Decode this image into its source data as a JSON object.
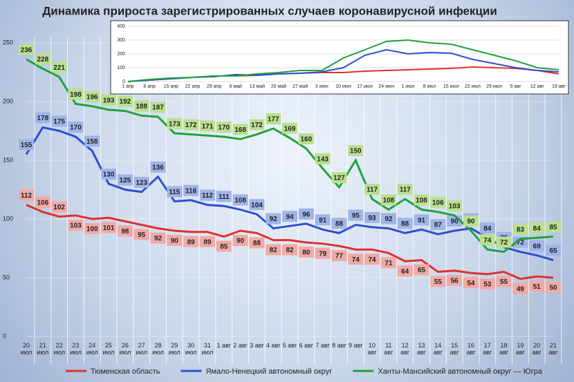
{
  "chart_data": [
    {
      "type": "line",
      "title": "Динамика прироста зарегистрированных случаев коронавирусной инфекции",
      "categories": [
        "20 июл",
        "21 июл",
        "22 июл",
        "23 июл",
        "24 июл",
        "25 июл",
        "26 июл",
        "27 июл",
        "28 июл",
        "29 июл",
        "30 июл",
        "31 июл",
        "1 авг",
        "2 авг",
        "3 авг",
        "4 авг",
        "5 авг",
        "6 авг",
        "7 авг",
        "8 авг",
        "9 авг",
        "10 авг",
        "11 авг",
        "12 авг",
        "13 авг",
        "14 авг",
        "15 авг",
        "16 авг",
        "17 авг",
        "18 авг",
        "19 авг",
        "20 авг",
        "21 авг"
      ],
      "series": [
        {
          "name": "Тюменская область",
          "color": "#e0302a",
          "values": [
            112,
            106,
            102,
            103,
            100,
            101,
            98,
            95,
            92,
            90,
            89,
            89,
            85,
            90,
            88,
            82,
            82,
            80,
            79,
            77,
            74,
            74,
            71,
            64,
            65,
            55,
            56,
            54,
            53,
            55,
            49,
            51,
            50
          ]
        },
        {
          "name": "Ямало-Ненецкий автономный округ",
          "color": "#2b4fd0",
          "values": [
            155,
            178,
            175,
            170,
            158,
            130,
            125,
            123,
            136,
            115,
            116,
            112,
            111,
            108,
            104,
            92,
            94,
            96,
            91,
            88,
            95,
            93,
            92,
            88,
            91,
            87,
            90,
            92,
            84,
            76,
            72,
            69,
            65
          ]
        },
        {
          "name": "Ханты-Мансийский автономный округ — Югра",
          "color": "#1fa33a",
          "values": [
            236,
            228,
            221,
            198,
            196,
            193,
            192,
            188,
            187,
            173,
            172,
            171,
            170,
            168,
            172,
            177,
            169,
            160,
            143,
            127,
            150,
            117,
            108,
            117,
            108,
            106,
            103,
            90,
            74,
            72,
            83,
            84,
            85
          ]
        }
      ],
      "ylim": [
        0,
        250
      ],
      "yticks": [
        0,
        50,
        100,
        150,
        200,
        250
      ],
      "grid": true,
      "legend": "bottom"
    },
    {
      "type": "line",
      "categories": [
        "1 апр",
        "8 апр",
        "15 апр",
        "22 апр",
        "29 апр",
        "6 май",
        "13 май",
        "20 май",
        "27 май",
        "3 июн",
        "10 июн",
        "17 июн",
        "24 июн",
        "1 июл",
        "8 июл",
        "15 июл",
        "22 июл",
        "29 июл",
        "5 авг",
        "12 авг",
        "19 авг"
      ],
      "series": [
        {
          "color": "#e0302a",
          "values": [
            0,
            10,
            20,
            30,
            40,
            40,
            45,
            55,
            60,
            65,
            65,
            75,
            80,
            85,
            90,
            95,
            105,
            100,
            95,
            80,
            55
          ]
        },
        {
          "color": "#2b4fd0",
          "values": [
            0,
            10,
            20,
            30,
            35,
            50,
            45,
            55,
            60,
            70,
            100,
            190,
            230,
            200,
            210,
            205,
            160,
            130,
            100,
            80,
            70
          ]
        },
        {
          "color": "#1fa33a",
          "values": [
            0,
            15,
            25,
            30,
            40,
            40,
            55,
            65,
            80,
            80,
            170,
            230,
            290,
            300,
            280,
            270,
            230,
            190,
            150,
            100,
            85
          ]
        }
      ],
      "ylim": [
        0,
        400
      ],
      "yticks": [
        0,
        100,
        200,
        300,
        400
      ],
      "grid": true
    }
  ]
}
